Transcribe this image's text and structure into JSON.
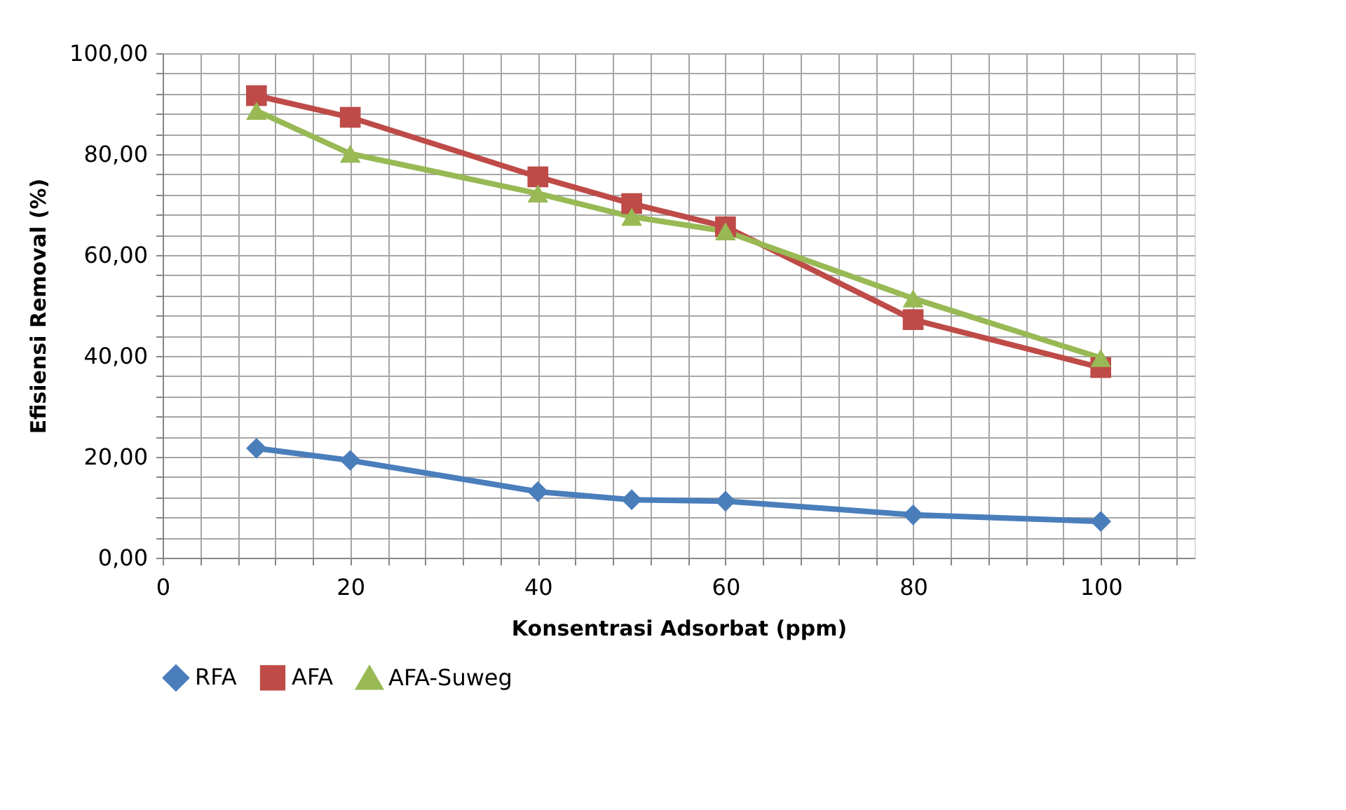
{
  "chart_data": {
    "type": "line",
    "xlabel": "Konsentrasi Adsorbat (ppm)",
    "ylabel": "Efisiensi Removal (%)",
    "x": [
      10,
      20,
      40,
      50,
      60,
      80,
      100
    ],
    "series": [
      {
        "name": "RFA",
        "color": "#4a7ebb",
        "marker": "diamond",
        "values": [
          21.7,
          19.3,
          13.1,
          11.5,
          11.2,
          8.5,
          7.2
        ]
      },
      {
        "name": "AFA",
        "color": "#be4b48",
        "marker": "square",
        "values": [
          91.6,
          87.3,
          75.5,
          70.2,
          65.6,
          47.2,
          37.7
        ]
      },
      {
        "name": "AFA-Suweg",
        "color": "#98b954",
        "marker": "triangle",
        "values": [
          88.6,
          80.1,
          72.2,
          67.6,
          64.7,
          51.4,
          39.6
        ]
      }
    ],
    "xlim": [
      0,
      110
    ],
    "xticks": [
      0,
      {
        "value": 4,
        "label": null
      },
      {
        "value": 8,
        "label": null
      },
      {
        "value": 12,
        "label": null
      },
      {
        "value": 16,
        "label": null
      },
      20,
      {
        "value": 24,
        "label": null
      },
      {
        "value": 28,
        "label": null
      },
      {
        "value": 32,
        "label": null
      },
      {
        "value": 36,
        "label": null
      },
      40,
      {
        "value": 44,
        "label": null
      },
      {
        "value": 48,
        "label": null
      },
      {
        "value": 52,
        "label": null
      },
      {
        "value": 56,
        "label": null
      },
      60,
      {
        "value": 64,
        "label": null
      },
      {
        "value": 68,
        "label": null
      },
      {
        "value": 72,
        "label": null
      },
      {
        "value": 76,
        "label": null
      },
      80,
      {
        "value": 84,
        "label": null
      },
      {
        "value": 88,
        "label": null
      },
      {
        "value": 92,
        "label": null
      },
      {
        "value": 96,
        "label": null
      },
      100,
      {
        "value": 104,
        "label": null
      },
      {
        "value": 108,
        "label": null
      }
    ],
    "ylim": [
      0,
      100
    ],
    "yticks": [
      {
        "value": 0,
        "label": "0,00"
      },
      {
        "value": 4,
        "label": null
      },
      {
        "value": 8,
        "label": null
      },
      {
        "value": 12,
        "label": null
      },
      {
        "value": 16,
        "label": null
      },
      {
        "value": 20,
        "label": "20,00"
      },
      {
        "value": 24,
        "label": null
      },
      {
        "value": 28,
        "label": null
      },
      {
        "value": 32,
        "label": null
      },
      {
        "value": 36,
        "label": null
      },
      {
        "value": 40,
        "label": "40,00"
      },
      {
        "value": 44,
        "label": null
      },
      {
        "value": 48,
        "label": null
      },
      {
        "value": 52,
        "label": null
      },
      {
        "value": 56,
        "label": null
      },
      {
        "value": 60,
        "label": "60,00"
      },
      {
        "value": 64,
        "label": null
      },
      {
        "value": 68,
        "label": null
      },
      {
        "value": 72,
        "label": null
      },
      {
        "value": 76,
        "label": null
      },
      {
        "value": 80,
        "label": "80,00"
      },
      {
        "value": 84,
        "label": null
      },
      {
        "value": 88,
        "label": null
      },
      {
        "value": 92,
        "label": null
      },
      {
        "value": 96,
        "label": null
      },
      {
        "value": 100,
        "label": "100,00"
      }
    ],
    "grid": true,
    "legend": "bottom",
    "line_style": "solid"
  }
}
